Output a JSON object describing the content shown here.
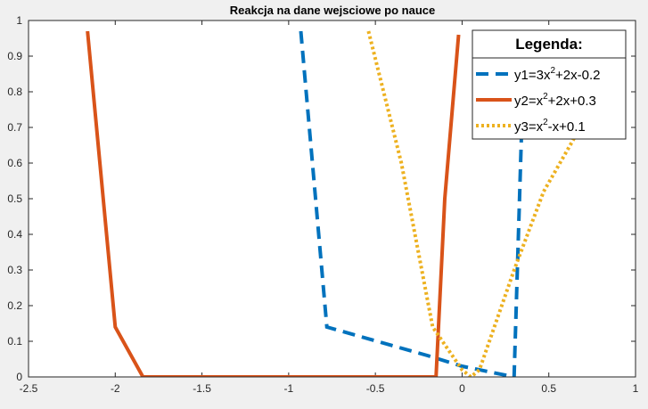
{
  "chart_data": {
    "type": "line",
    "title": "Reakcja na dane wejsciowe po nauce",
    "xlabel": "",
    "ylabel": "",
    "xlim": [
      -2.5,
      1
    ],
    "ylim": [
      0,
      1
    ],
    "xticks": [
      -2.5,
      -2,
      -1.5,
      -1,
      -0.5,
      0,
      0.5,
      1
    ],
    "xtick_labels": [
      "-2.5",
      "-2",
      "-1.5",
      "-1",
      "-0.5",
      "0",
      "0.5",
      "1"
    ],
    "yticks": [
      0,
      0.1,
      0.2,
      0.3,
      0.4,
      0.5,
      0.6,
      0.7,
      0.8,
      0.9,
      1
    ],
    "ytick_labels": [
      "0",
      "0.1",
      "0.2",
      "0.3",
      "0.4",
      "0.5",
      "0.6",
      "0.7",
      "0.8",
      "0.9",
      "1"
    ],
    "grid": false,
    "legend": {
      "title": "Legenda:",
      "location": "top-right",
      "entries": [
        {
          "base": "y1=3x",
          "sup": "2",
          "rest": "+2x-0.2"
        },
        {
          "base": "y2=x",
          "sup": "2",
          "rest": "+2x+0.3"
        },
        {
          "base": "y3=x",
          "sup": "2",
          "rest": "-x+0.1"
        }
      ]
    },
    "series": [
      {
        "color": "#0072bd",
        "style": "dashed",
        "x": [
          -0.93,
          -0.78,
          -0.2,
          0.0,
          0.3,
          0.3,
          0.35
        ],
        "y": [
          0.97,
          0.14,
          0.06,
          0.03,
          0.0,
          0.002,
          0.8
        ]
      },
      {
        "color": "#d95319",
        "style": "solid",
        "x": [
          -2.16,
          -2.0,
          -1.84,
          -0.5,
          -0.15,
          -0.1,
          -0.02
        ],
        "y": [
          0.97,
          0.14,
          0.0,
          0.0,
          0.0,
          0.5,
          0.96
        ]
      },
      {
        "color": "#edb120",
        "style": "dotted",
        "x": [
          -0.54,
          -0.35,
          -0.17,
          0.0,
          0.05,
          0.1,
          0.3,
          0.47,
          0.67
        ],
        "y": [
          0.97,
          0.6,
          0.14,
          0.02,
          0.0,
          0.02,
          0.3,
          0.52,
          0.69
        ]
      }
    ]
  }
}
